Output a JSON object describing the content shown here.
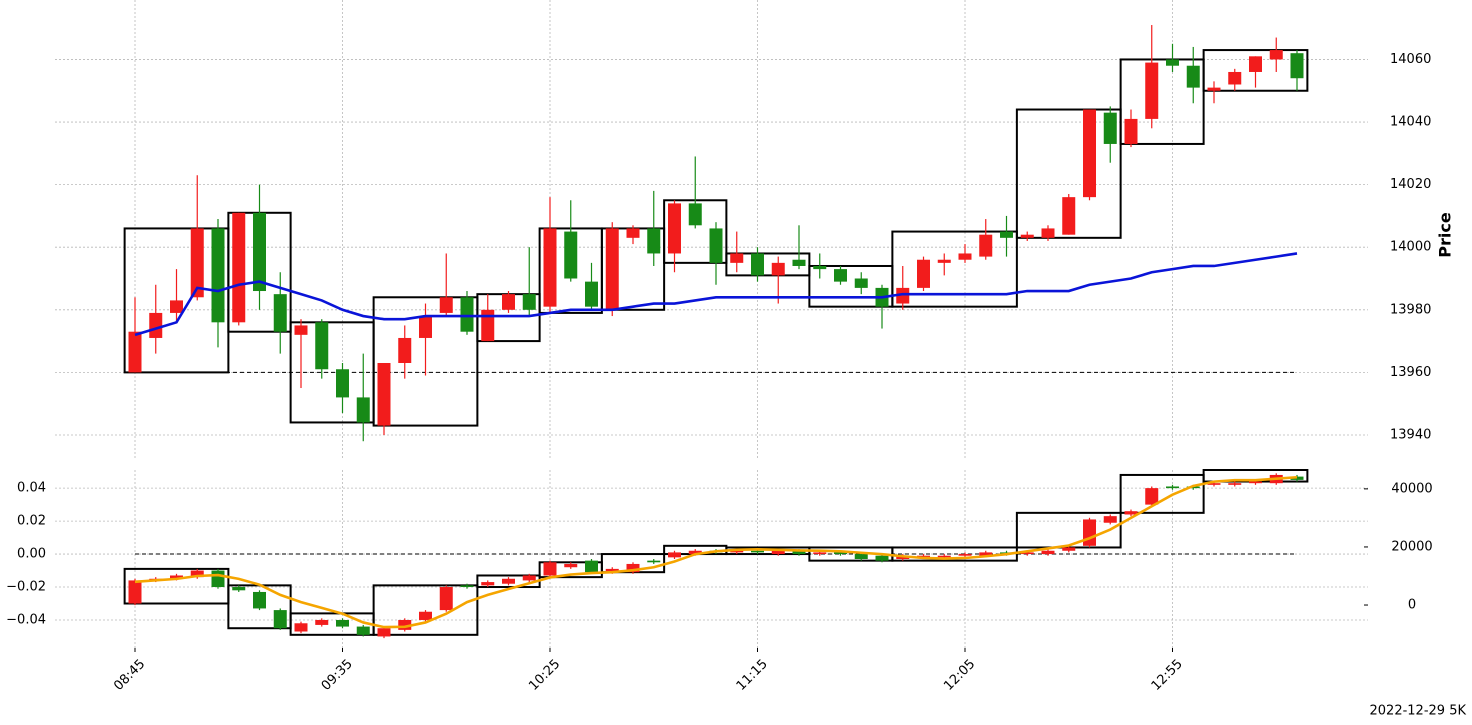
{
  "chart_data": [
    {
      "type": "candlestick",
      "ylabel": "Price",
      "up_color": "#f21c1c",
      "down_color": "#178a17",
      "grid": true,
      "ylim": [
        13932,
        14079
      ],
      "yticks": [
        13940,
        13960,
        13980,
        14000,
        14020,
        14040,
        14060
      ],
      "hline": 13960,
      "ohlc": [
        [
          13960,
          13984,
          13960,
          13973
        ],
        [
          13971,
          13988,
          13966,
          13979
        ],
        [
          13979,
          13993,
          13976,
          13983
        ],
        [
          13984,
          14023,
          13983,
          14006
        ],
        [
          14006,
          14009,
          13968,
          13976
        ],
        [
          13976,
          14011,
          13975,
          14011
        ],
        [
          14011,
          14020,
          13980,
          13986
        ],
        [
          13985,
          13992,
          13966,
          13973
        ],
        [
          13972,
          13977,
          13955,
          13975
        ],
        [
          13976,
          13977,
          13958,
          13961
        ],
        [
          13961,
          13963,
          13947,
          13952
        ],
        [
          13952,
          13966,
          13938,
          13944
        ],
        [
          13943,
          13963,
          13940,
          13963
        ],
        [
          13963,
          13975,
          13958,
          13971
        ],
        [
          13971,
          13982,
          13959,
          13978
        ],
        [
          13979,
          13998,
          13978,
          13984
        ],
        [
          13984,
          13986,
          13972,
          13973
        ],
        [
          13970,
          13985,
          13970,
          13980
        ],
        [
          13980,
          13986,
          13979,
          13985
        ],
        [
          13985,
          14000,
          13978,
          13980
        ],
        [
          13981,
          14016,
          13979,
          14006
        ],
        [
          14005,
          14015,
          13989,
          13990
        ],
        [
          13989,
          13995,
          13980,
          13981
        ],
        [
          13980,
          14008,
          13978,
          14006
        ],
        [
          14003,
          14007,
          14001,
          14006
        ],
        [
          14006,
          14018,
          13994,
          13998
        ],
        [
          13998,
          14015,
          13992,
          14014
        ],
        [
          14014,
          14029,
          14006,
          14007
        ],
        [
          14006,
          14008,
          13988,
          13995
        ],
        [
          13995,
          14005,
          13992,
          13998
        ],
        [
          13998,
          14000,
          13989,
          13991
        ],
        [
          13991,
          13997,
          13982,
          13995
        ],
        [
          13996,
          14007,
          13993,
          13994
        ],
        [
          13994,
          13998,
          13990,
          13993
        ],
        [
          13993,
          13994,
          13988,
          13989
        ],
        [
          13990,
          13992,
          13985,
          13987
        ],
        [
          13987,
          13988,
          13974,
          13981
        ],
        [
          13982,
          13994,
          13980,
          13987
        ],
        [
          13987,
          13997,
          13986,
          13996
        ],
        [
          13995,
          13998,
          13991,
          13996
        ],
        [
          13996,
          14001,
          13995,
          13998
        ],
        [
          13997,
          14009,
          13996,
          14004
        ],
        [
          14005,
          14010,
          13997,
          14003
        ],
        [
          14003,
          14005,
          14002,
          14004
        ],
        [
          14003,
          14007,
          14002,
          14006
        ],
        [
          14004,
          14017,
          14004,
          14016
        ],
        [
          14016,
          14044,
          14015,
          14044
        ],
        [
          14043,
          14045,
          14027,
          14033
        ],
        [
          14033,
          14044,
          14032,
          14041
        ],
        [
          14041,
          14071,
          14038,
          14059
        ],
        [
          14060,
          14065,
          14056,
          14058
        ],
        [
          14058,
          14064,
          14046,
          14051
        ],
        [
          14050,
          14053,
          14046,
          14051
        ],
        [
          14052,
          14057,
          14050,
          14056
        ],
        [
          14056,
          14061,
          14051,
          14061
        ],
        [
          14060,
          14067,
          14056,
          14063
        ],
        [
          14062,
          14063,
          14050,
          14054
        ]
      ],
      "series": [
        {
          "color": "#0a14d8",
          "values": [
            13972,
            13974,
            13976,
            13987,
            13986,
            13988,
            13989,
            13987,
            13985,
            13983,
            13980,
            13978,
            13977,
            13977,
            13978,
            13978,
            13978,
            13978,
            13978,
            13978,
            13979,
            13980,
            13980,
            13980,
            13981,
            13982,
            13982,
            13983,
            13984,
            13984,
            13984,
            13984,
            13984,
            13984,
            13984,
            13984,
            13984,
            13985,
            13985,
            13985,
            13985,
            13985,
            13985,
            13986,
            13986,
            13986,
            13988,
            13989,
            13990,
            13992,
            13993,
            13994,
            13994,
            13995,
            13996,
            13997,
            13998
          ]
        }
      ],
      "boxes": [
        {
          "from": 0,
          "to": 4,
          "high": 14006,
          "low": 13960
        },
        {
          "from": 5,
          "to": 7,
          "high": 14011,
          "low": 13973
        },
        {
          "from": 8,
          "to": 11,
          "high": 13976,
          "low": 13944
        },
        {
          "from": 12,
          "to": 16,
          "high": 13984,
          "low": 13943
        },
        {
          "from": 17,
          "to": 19,
          "high": 13985,
          "low": 13970
        },
        {
          "from": 20,
          "to": 22,
          "high": 14006,
          "low": 13979
        },
        {
          "from": 23,
          "to": 25,
          "high": 14006,
          "low": 13980
        },
        {
          "from": 26,
          "to": 28,
          "high": 14015,
          "low": 13995
        },
        {
          "from": 29,
          "to": 32,
          "high": 13998,
          "low": 13991
        },
        {
          "from": 33,
          "to": 36,
          "high": 13994,
          "low": 13981
        },
        {
          "from": 37,
          "to": 42,
          "high": 14005,
          "low": 13981
        },
        {
          "from": 43,
          "to": 47,
          "high": 14044,
          "low": 14003
        },
        {
          "from": 48,
          "to": 51,
          "high": 14060,
          "low": 14033
        },
        {
          "from": 52,
          "to": 56,
          "high": 14063,
          "low": 14050
        }
      ]
    },
    {
      "type": "candlestick",
      "up_color": "#f21c1c",
      "down_color": "#178a17",
      "grid": true,
      "ylim": [
        -0.057,
        0.051
      ],
      "yticks": [
        {
          "value": -0.04,
          "label": "−0.04"
        },
        {
          "value": -0.02,
          "label": "−0.02"
        },
        {
          "value": 0,
          "label": "0.00"
        },
        {
          "value": 0.02,
          "label": "0.02"
        },
        {
          "value": 0.04,
          "label": "0.04"
        }
      ],
      "y2lim": [
        -14800,
        46500
      ],
      "y2ticks": [
        0,
        20000,
        40000
      ],
      "hline": 0,
      "categories": [
        "08:45",
        null,
        null,
        null,
        null,
        null,
        null,
        null,
        null,
        null,
        "09:35",
        null,
        null,
        null,
        null,
        null,
        null,
        null,
        null,
        null,
        "10:25",
        null,
        null,
        null,
        null,
        null,
        null,
        null,
        null,
        null,
        "11:15",
        null,
        null,
        null,
        null,
        null,
        null,
        null,
        null,
        null,
        "12:05",
        null,
        null,
        null,
        null,
        null,
        null,
        null,
        null,
        null,
        "12:55",
        null,
        null,
        null,
        null,
        null,
        null
      ],
      "ohlc": [
        [
          -0.03,
          -0.015,
          -0.031,
          -0.016
        ],
        [
          -0.016,
          -0.014,
          -0.017,
          -0.015
        ],
        [
          -0.015,
          -0.012,
          -0.016,
          -0.013
        ],
        [
          -0.014,
          -0.009,
          -0.015,
          -0.01
        ],
        [
          -0.01,
          -0.009,
          -0.021,
          -0.02
        ],
        [
          -0.02,
          -0.019,
          -0.023,
          -0.022
        ],
        [
          -0.023,
          -0.022,
          -0.034,
          -0.033
        ],
        [
          -0.034,
          -0.033,
          -0.046,
          -0.045
        ],
        [
          -0.047,
          -0.041,
          -0.048,
          -0.042
        ],
        [
          -0.043,
          -0.039,
          -0.044,
          -0.04
        ],
        [
          -0.04,
          -0.039,
          -0.045,
          -0.044
        ],
        [
          -0.044,
          -0.043,
          -0.05,
          -0.049
        ],
        [
          -0.05,
          -0.044,
          -0.051,
          -0.045
        ],
        [
          -0.046,
          -0.039,
          -0.047,
          -0.04
        ],
        [
          -0.04,
          -0.034,
          -0.041,
          -0.035
        ],
        [
          -0.034,
          -0.019,
          -0.035,
          -0.02
        ],
        [
          -0.019,
          -0.018,
          -0.021,
          -0.02
        ],
        [
          -0.019,
          -0.016,
          -0.02,
          -0.017
        ],
        [
          -0.018,
          -0.014,
          -0.019,
          -0.015
        ],
        [
          -0.016,
          -0.012,
          -0.017,
          -0.013
        ],
        [
          -0.013,
          -0.004,
          -0.014,
          -0.005
        ],
        [
          -0.008,
          -0.005,
          -0.009,
          -0.006
        ],
        [
          -0.004,
          -0.003,
          -0.012,
          -0.011
        ],
        [
          -0.011,
          -0.008,
          -0.012,
          -0.009
        ],
        [
          -0.011,
          -0.005,
          -0.012,
          -0.006
        ],
        [
          -0.004,
          -0.003,
          -0.006,
          -0.005
        ],
        [
          -0.002,
          0.002,
          -0.003,
          0.001
        ],
        [
          0.0,
          0.003,
          -0.001,
          0.002
        ],
        [
          0.002,
          0.003,
          0.0,
          0.001
        ],
        [
          0.001,
          0.003,
          0.0,
          0.002
        ],
        [
          0.002,
          0.003,
          0.0,
          0.001
        ],
        [
          0.0,
          0.003,
          -0.001,
          0.002
        ],
        [
          0.002,
          0.003,
          -0.001,
          0.0
        ],
        [
          0.0,
          0.002,
          -0.001,
          0.001
        ],
        [
          0.001,
          0.002,
          -0.001,
          0.0
        ],
        [
          0.0,
          0.001,
          -0.004,
          -0.003
        ],
        [
          -0.001,
          0.0,
          -0.005,
          -0.004
        ],
        [
          -0.003,
          0.0,
          -0.004,
          -0.001
        ],
        [
          -0.002,
          0.0,
          -0.003,
          -0.001
        ],
        [
          -0.002,
          0.0,
          -0.003,
          -0.001
        ],
        [
          -0.001,
          0.001,
          -0.002,
          0.0
        ],
        [
          -0.001,
          0.002,
          -0.002,
          0.001
        ],
        [
          0.001,
          0.002,
          -0.001,
          0.0
        ],
        [
          0.0,
          0.002,
          -0.001,
          0.001
        ],
        [
          0.0,
          0.003,
          -0.001,
          0.002
        ],
        [
          0.002,
          0.005,
          0.001,
          0.004
        ],
        [
          0.005,
          0.022,
          0.004,
          0.021
        ],
        [
          0.019,
          0.024,
          0.018,
          0.023
        ],
        [
          0.024,
          0.027,
          0.023,
          0.026
        ],
        [
          0.03,
          0.041,
          0.029,
          0.04
        ],
        [
          0.041,
          0.042,
          0.039,
          0.04
        ],
        [
          0.041,
          0.042,
          0.039,
          0.04
        ],
        [
          0.042,
          0.044,
          0.041,
          0.043
        ],
        [
          0.042,
          0.044,
          0.041,
          0.043
        ],
        [
          0.043,
          0.045,
          0.042,
          0.044
        ],
        [
          0.043,
          0.049,
          0.042,
          0.048
        ],
        [
          0.047,
          0.048,
          0.044,
          0.045
        ]
      ],
      "series": [
        {
          "color": "#f5a500",
          "axis": "y2",
          "values": [
            8000,
            8500,
            9000,
            10000,
            10300,
            9000,
            7000,
            3500,
            1000,
            -1000,
            -3000,
            -6000,
            -7600,
            -7500,
            -6000,
            -3000,
            1000,
            3500,
            5500,
            7500,
            9500,
            10500,
            11000,
            11300,
            12000,
            13000,
            15000,
            17500,
            18500,
            19000,
            19200,
            19000,
            18800,
            18700,
            18500,
            18000,
            17500,
            16800,
            16200,
            16000,
            16200,
            16800,
            17500,
            18500,
            19500,
            20500,
            23000,
            26000,
            30000,
            34000,
            38000,
            41000,
            42500,
            43000,
            43000,
            43500,
            44000
          ]
        }
      ],
      "boxes": [
        {
          "from": 0,
          "to": 4,
          "high": -0.009,
          "low": -0.03
        },
        {
          "from": 5,
          "to": 7,
          "high": -0.019,
          "low": -0.045
        },
        {
          "from": 8,
          "to": 11,
          "high": -0.036,
          "low": -0.049
        },
        {
          "from": 12,
          "to": 16,
          "high": -0.019,
          "low": -0.049
        },
        {
          "from": 17,
          "to": 19,
          "high": -0.013,
          "low": -0.02
        },
        {
          "from": 20,
          "to": 22,
          "high": -0.005,
          "low": -0.014
        },
        {
          "from": 23,
          "to": 25,
          "high": 0.0,
          "low": -0.011
        },
        {
          "from": 26,
          "to": 28,
          "high": 0.005,
          "low": 0.0
        },
        {
          "from": 29,
          "to": 32,
          "high": 0.004,
          "low": 0.0
        },
        {
          "from": 33,
          "to": 36,
          "high": 0.004,
          "low": -0.004
        },
        {
          "from": 37,
          "to": 42,
          "high": 0.004,
          "low": -0.004
        },
        {
          "from": 43,
          "to": 47,
          "high": 0.025,
          "low": 0.004
        },
        {
          "from": 48,
          "to": 51,
          "high": 0.048,
          "low": 0.025
        },
        {
          "from": 52,
          "to": 56,
          "high": 0.051,
          "low": 0.044
        }
      ],
      "annotation": "2022-12-29 5K"
    }
  ]
}
